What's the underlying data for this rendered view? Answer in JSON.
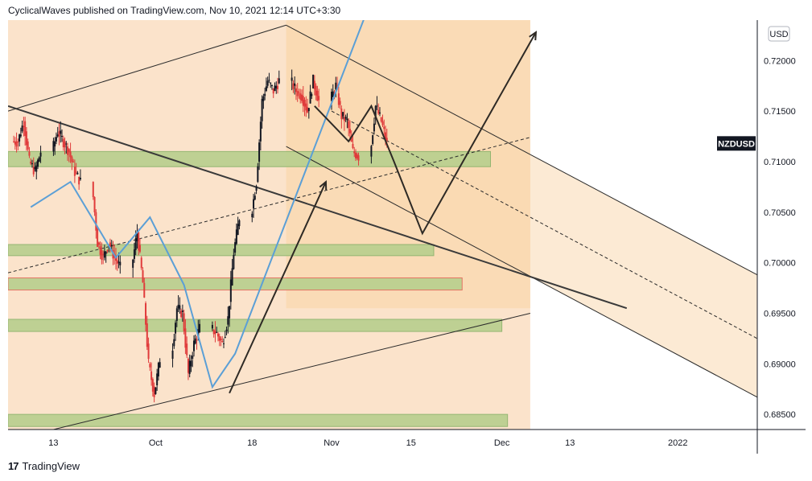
{
  "header": {
    "text": "CyclicalWaves published on TradingView.com, Nov 10, 2021 12:14 UTC+3:30"
  },
  "footer": {
    "logo": "17",
    "brand": "TradingView"
  },
  "chart_data": {
    "type": "candlestick",
    "symbol": "NZDUSD",
    "currency": "USD",
    "ylim": [
      0.6835,
      0.724
    ],
    "y_ticks": [
      "0.72000",
      "0.71500",
      "0.71000",
      "0.70500",
      "0.70000",
      "0.69500",
      "0.69000",
      "0.68500"
    ],
    "y_tick_values": [
      0.72,
      0.715,
      0.71,
      0.705,
      0.7,
      0.695,
      0.69,
      0.685
    ],
    "x_ticks": [
      "13",
      "Oct",
      "18",
      "Nov",
      "15",
      "Dec",
      "13",
      "2022"
    ],
    "x_tick_dates": [
      "2021-09-13",
      "2021-10-01",
      "2021-10-18",
      "2021-11-01",
      "2021-11-15",
      "2021-12-01",
      "2021-12-13",
      "2022-01-01"
    ],
    "xlim": [
      "2021-09-05",
      "2022-01-15"
    ],
    "current_price_label": "NZDUSD",
    "current_price": 0.7118,
    "daily_closes": [
      [
        "2021-09-06",
        0.712
      ],
      [
        "2021-09-07",
        0.714
      ],
      [
        "2021-09-08",
        0.71
      ],
      [
        "2021-09-09",
        0.709
      ],
      [
        "2021-09-10",
        0.711
      ],
      [
        "2021-09-13",
        0.713
      ],
      [
        "2021-09-14",
        0.712
      ],
      [
        "2021-09-15",
        0.711
      ],
      [
        "2021-09-16",
        0.709
      ],
      [
        "2021-09-17",
        0.708
      ],
      [
        "2021-09-20",
        0.702
      ],
      [
        "2021-09-21",
        0.7005
      ],
      [
        "2021-09-22",
        0.702
      ],
      [
        "2021-09-23",
        0.7005
      ],
      [
        "2021-09-24",
        0.6995
      ],
      [
        "2021-09-27",
        0.703
      ],
      [
        "2021-09-28",
        0.698
      ],
      [
        "2021-09-29",
        0.69
      ],
      [
        "2021-09-30",
        0.687
      ],
      [
        "2021-10-01",
        0.6905
      ],
      [
        "2021-10-04",
        0.6955
      ],
      [
        "2021-10-05",
        0.695
      ],
      [
        "2021-10-06",
        0.689
      ],
      [
        "2021-10-07",
        0.692
      ],
      [
        "2021-10-08",
        0.6935
      ],
      [
        "2021-10-11",
        0.693
      ],
      [
        "2021-10-12",
        0.692
      ],
      [
        "2021-10-13",
        0.6945
      ],
      [
        "2021-10-14",
        0.701
      ],
      [
        "2021-10-15",
        0.7045
      ],
      [
        "2021-10-18",
        0.708
      ],
      [
        "2021-10-19",
        0.716
      ],
      [
        "2021-10-20",
        0.718
      ],
      [
        "2021-10-21",
        0.717
      ],
      [
        "2021-10-22",
        0.718
      ],
      [
        "2021-10-25",
        0.717
      ],
      [
        "2021-10-26",
        0.7165
      ],
      [
        "2021-10-27",
        0.715
      ],
      [
        "2021-10-28",
        0.718
      ],
      [
        "2021-10-29",
        0.716
      ],
      [
        "2021-11-01",
        0.7175
      ],
      [
        "2021-11-02",
        0.7145
      ],
      [
        "2021-11-03",
        0.714
      ],
      [
        "2021-11-04",
        0.711
      ],
      [
        "2021-11-05",
        0.7105
      ],
      [
        "2021-11-08",
        0.7155
      ],
      [
        "2021-11-09",
        0.714
      ],
      [
        "2021-11-10",
        0.7118
      ]
    ],
    "support_zones": [
      {
        "from": 0.7095,
        "to": 0.711,
        "start": "2021-09-05",
        "end": "2021-11-29"
      },
      {
        "from": 0.7007,
        "to": 0.7018,
        "start": "2021-09-05",
        "end": "2021-11-19"
      },
      {
        "from": 0.6973,
        "to": 0.6985,
        "start": "2021-09-05",
        "end": "2021-11-24"
      },
      {
        "from": 0.6932,
        "to": 0.6944,
        "start": "2021-09-05",
        "end": "2021-12-01"
      },
      {
        "from": 0.6838,
        "to": 0.685,
        "start": "2021-09-05",
        "end": "2021-12-02"
      }
    ],
    "colors": {
      "background_band": "#fbe3cb",
      "channel_fill": "#fad8b0",
      "zone_fill": "#b8cf8e",
      "up_candle": "#131722",
      "down_candle": "#e03b3b",
      "projection_line": "#2e2a25",
      "blue_path": "#5b9fd6",
      "symbol_badge": "#131722"
    }
  }
}
